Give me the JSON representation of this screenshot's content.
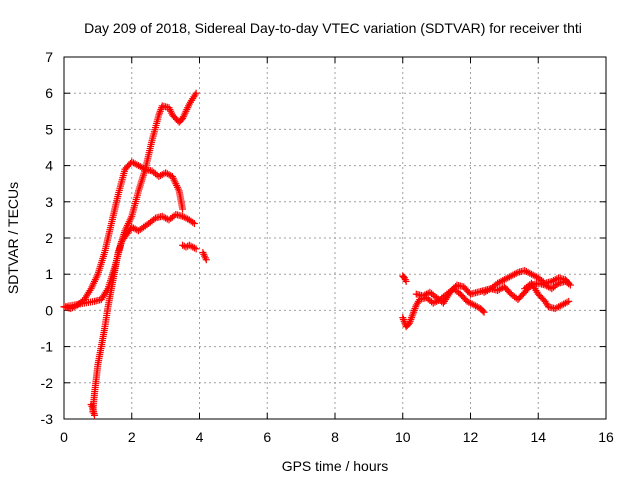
{
  "chart_data": {
    "type": "scatter",
    "title": "Day 209 of 2018, Sidereal Day-to-day VTEC variation (SDTVAR) for receiver thti",
    "xlabel": "GPS time / hours",
    "ylabel": "SDTVAR / TECUs",
    "xlim": [
      0,
      16
    ],
    "ylim": [
      -3,
      7
    ],
    "xticks": [
      0,
      2,
      4,
      6,
      8,
      10,
      12,
      14,
      16
    ],
    "yticks": [
      -3,
      -2,
      -1,
      0,
      1,
      2,
      3,
      4,
      5,
      6,
      7
    ],
    "xtick_labels": [
      "0",
      "2",
      "4",
      "6",
      "8",
      "10",
      "12",
      "14",
      "16"
    ],
    "ytick_labels": [
      "-3",
      "-2",
      "-1",
      "0",
      "1",
      "2",
      "3",
      "4",
      "5",
      "6",
      "7"
    ],
    "grid": true,
    "marker": "+",
    "color": "#ff0000",
    "series": [
      {
        "x": [
          0.0,
          0.2,
          0.4,
          0.6,
          0.8,
          1.0,
          1.2,
          1.4,
          1.6,
          1.8,
          2.0,
          2.2,
          2.4,
          2.6,
          2.8,
          3.0,
          3.2,
          3.4,
          3.5
        ],
        "y": [
          0.1,
          0.05,
          0.15,
          0.3,
          0.6,
          1.0,
          1.6,
          2.4,
          3.2,
          3.9,
          4.1,
          4.0,
          3.9,
          3.85,
          3.7,
          3.8,
          3.7,
          3.3,
          2.8
        ]
      },
      {
        "x": [
          0.0,
          0.3,
          0.6,
          0.9,
          1.1,
          1.3,
          1.5,
          1.7,
          2.0,
          2.2,
          2.5,
          2.7,
          2.9,
          3.1,
          3.3,
          3.5,
          3.7,
          3.85
        ],
        "y": [
          0.1,
          0.15,
          0.2,
          0.25,
          0.3,
          0.6,
          1.2,
          1.9,
          2.3,
          2.2,
          2.4,
          2.55,
          2.6,
          2.5,
          2.65,
          2.6,
          2.5,
          2.4
        ]
      },
      {
        "x": [
          0.85,
          0.9,
          1.0,
          1.1,
          1.2,
          1.3,
          1.4,
          1.5,
          1.6,
          1.7,
          1.8,
          2.0,
          2.2,
          2.4,
          2.6,
          2.8,
          2.9,
          3.1,
          3.2,
          3.4,
          3.5,
          3.7,
          3.9
        ],
        "y": [
          -2.8,
          -2.3,
          -1.5,
          -1.0,
          -0.5,
          0.1,
          0.6,
          1.1,
          1.6,
          1.9,
          2.2,
          2.6,
          3.3,
          3.9,
          4.7,
          5.4,
          5.65,
          5.6,
          5.4,
          5.2,
          5.3,
          5.7,
          6.0
        ]
      },
      {
        "x": [
          3.5,
          3.6,
          3.7,
          3.8,
          3.9
        ],
        "y": [
          1.8,
          1.75,
          1.8,
          1.75,
          1.7
        ]
      },
      {
        "x": [
          4.1,
          4.15,
          4.2
        ],
        "y": [
          1.6,
          1.5,
          1.4
        ]
      },
      {
        "x": [
          0.8,
          0.85,
          0.9
        ],
        "y": [
          -2.6,
          -2.7,
          -2.9
        ]
      },
      {
        "x": [
          10.0,
          10.05,
          10.1
        ],
        "y": [
          0.95,
          0.9,
          0.8
        ]
      },
      {
        "x": [
          10.0,
          10.1,
          10.2,
          10.3,
          10.4,
          10.5,
          10.7,
          10.9,
          11.1,
          11.3,
          11.5,
          11.7,
          11.9,
          12.1,
          12.3,
          12.4
        ],
        "y": [
          -0.2,
          -0.45,
          -0.35,
          -0.1,
          0.15,
          0.3,
          0.35,
          0.2,
          0.3,
          0.45,
          0.6,
          0.45,
          0.25,
          0.15,
          0.05,
          -0.05
        ]
      },
      {
        "x": [
          10.4,
          10.6,
          10.8,
          11.0,
          11.2,
          11.4,
          11.6,
          11.8,
          12.0,
          12.2,
          12.4,
          12.6,
          12.8,
          13.0,
          13.2,
          13.4,
          13.6,
          13.8,
          14.0,
          14.2,
          14.4,
          14.6,
          14.8,
          14.9
        ],
        "y": [
          0.45,
          0.4,
          0.5,
          0.35,
          0.2,
          0.5,
          0.7,
          0.65,
          0.45,
          0.5,
          0.55,
          0.6,
          0.75,
          0.85,
          0.95,
          1.05,
          1.1,
          1.0,
          0.9,
          0.75,
          0.8,
          0.9,
          0.85,
          0.75
        ]
      },
      {
        "x": [
          12.4,
          12.6,
          12.8,
          13.0,
          13.2,
          13.4,
          13.6,
          13.8,
          14.0,
          14.2,
          14.4,
          14.6,
          14.8,
          14.95
        ],
        "y": [
          0.5,
          0.6,
          0.55,
          0.65,
          0.45,
          0.3,
          0.5,
          0.7,
          0.75,
          0.7,
          0.6,
          0.75,
          0.8,
          0.7
        ]
      },
      {
        "x": [
          13.6,
          13.8,
          14.0,
          14.2,
          14.3,
          14.5,
          14.7,
          14.9
        ],
        "y": [
          0.6,
          0.75,
          0.45,
          0.25,
          0.1,
          0.05,
          0.15,
          0.25
        ]
      }
    ]
  }
}
